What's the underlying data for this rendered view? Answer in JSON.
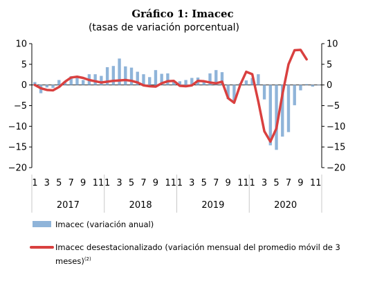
{
  "chart_data": {
    "type": "bar",
    "title": "Gráfico 1: Imacec",
    "subtitle": "(tasas de variación porcentual)",
    "ylim": [
      -20,
      10
    ],
    "yticks": [
      10,
      5,
      0,
      -5,
      -10,
      -15,
      -20
    ],
    "ytick_labels": [
      "10",
      "5",
      "0",
      "−5",
      "−10",
      "−15",
      "−20"
    ],
    "month_tick_labels": [
      "1",
      "3",
      "5",
      "7",
      "9",
      "11"
    ],
    "years": [
      "2017",
      "2018",
      "2019",
      "2020"
    ],
    "grid": false,
    "legend_position": "bottom",
    "colors": {
      "bar": "#8fb4d9",
      "line": "#d9403f"
    },
    "series": [
      {
        "name": "Imacec (variación anual)",
        "type": "bar",
        "values": [
          0.7,
          -2.0,
          -0.6,
          -0.7,
          1.2,
          0.6,
          2.1,
          1.9,
          1.2,
          2.6,
          2.6,
          2.2,
          4.3,
          4.6,
          6.4,
          4.5,
          4.2,
          3.2,
          2.6,
          1.9,
          3.6,
          2.7,
          2.8,
          1.1,
          0.9,
          1.2,
          1.7,
          1.8,
          1.0,
          2.8,
          3.6,
          3.1,
          -3.4,
          -3.8,
          0.4,
          1.1,
          1.7,
          2.6,
          -3.5,
          -14.6,
          -15.7,
          -12.5,
          -11.4,
          -4.9,
          -1.3,
          0.2,
          -0.4,
          0.0
        ]
      },
      {
        "name": "Imacec desestacionalizado (variación mensual del promedio móvil de 3 meses)",
        "name_superscript": "(2)",
        "type": "line",
        "values": [
          0.0,
          -0.8,
          -1.2,
          -1.3,
          -0.5,
          0.8,
          1.8,
          2.0,
          1.7,
          1.2,
          0.9,
          0.6,
          0.8,
          1.0,
          1.1,
          1.2,
          1.0,
          0.6,
          -0.1,
          -0.3,
          -0.4,
          0.4,
          0.9,
          1.0,
          -0.2,
          -0.3,
          -0.1,
          1.0,
          0.9,
          0.6,
          0.4,
          0.8,
          -3.2,
          -4.3,
          0.0,
          3.2,
          2.6,
          -4.0,
          -11.2,
          -13.7,
          -10.5,
          -2.2,
          5.0,
          8.4,
          8.5,
          6.2
        ]
      }
    ]
  }
}
